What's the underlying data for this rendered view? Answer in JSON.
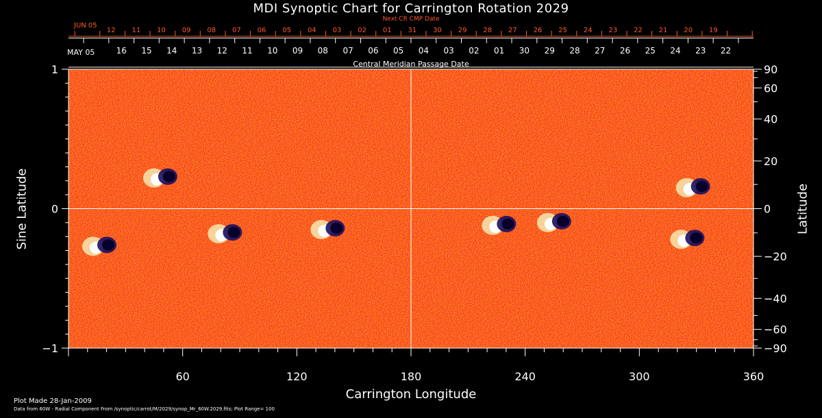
{
  "chart_data": {
    "type": "heatmap",
    "title": "MDI Synoptic Chart for Carrington Rotation 2029",
    "xlabel": "Carrington Longitude",
    "ylabel_left": "Sine Latitude",
    "ylabel_right": "Latitude",
    "xlim": [
      0,
      360
    ],
    "ylim": [
      -1,
      1
    ],
    "x_ticks": [
      60,
      120,
      180,
      240,
      300,
      360
    ],
    "y_ticks_left": [
      1,
      0,
      -1
    ],
    "y_ticks_left_labels": [
      "1",
      "0",
      "−1"
    ],
    "y_ticks_right": [
      90,
      60,
      40,
      20,
      0,
      -20,
      -40,
      -60,
      -90
    ],
    "y_ticks_right_labels": [
      "90",
      "60",
      "40",
      "20",
      "0",
      "−20",
      "−40",
      "−60",
      "−90"
    ],
    "next_cr_axis_title": "Next CR CMP Date",
    "next_cr_start_label": "JUN 05",
    "next_cr_dates": [
      "12",
      "11",
      "10",
      "09",
      "08",
      "07",
      "06",
      "05",
      "04",
      "03",
      "02",
      "01",
      "31",
      "30",
      "29",
      "28",
      "27",
      "26",
      "25",
      "24",
      "23",
      "22",
      "21",
      "20",
      "19"
    ],
    "cmp_axis_title": "Central Meridian Passage Date",
    "cmp_start_label": "MAY 05",
    "cmp_dates": [
      "16",
      "15",
      "14",
      "13",
      "12",
      "11",
      "10",
      "09",
      "08",
      "07",
      "06",
      "05",
      "04",
      "03",
      "02",
      "01",
      "30",
      "29",
      "28",
      "27",
      "26",
      "25",
      "24",
      "23",
      "22"
    ],
    "active_regions": [
      {
        "lon": 50,
        "lat": 0.22
      },
      {
        "lon": 18,
        "lat": -0.27
      },
      {
        "lon": 84,
        "lat": -0.18
      },
      {
        "lon": 138,
        "lat": -0.15
      },
      {
        "lon": 228,
        "lat": -0.12
      },
      {
        "lon": 257,
        "lat": -0.1
      },
      {
        "lon": 327,
        "lat": -0.22
      },
      {
        "lon": 330,
        "lat": 0.15
      }
    ],
    "colors": {
      "field": "#e0501a",
      "positive": "#ffffff",
      "negative": "#06002a",
      "next_cr": "#ff5a2a"
    }
  },
  "footer": {
    "plot_made": "Plot Made 28-Jan-2009",
    "data_source": "Data from 60W - Radial Component From /synoptic/carrot/M/2029/synop_Mr_60W.2029.fits; Plot Range=  100"
  }
}
